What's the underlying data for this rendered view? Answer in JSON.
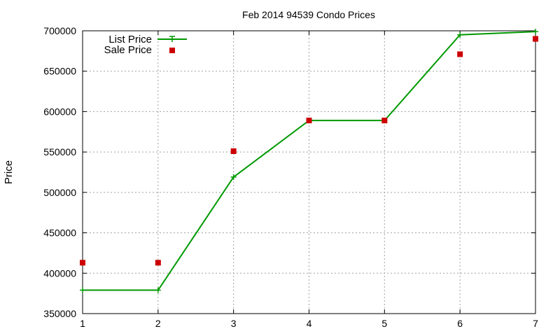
{
  "chart_data": {
    "type": "line",
    "title": "Feb 2014 94539 Condo Prices",
    "xlabel": "",
    "ylabel": "Price",
    "xlim": [
      1,
      7
    ],
    "ylim": [
      350000,
      700000
    ],
    "xticks": [
      "1",
      "2",
      "3",
      "4",
      "5",
      "6",
      "7"
    ],
    "yticks": [
      "350000",
      "400000",
      "450000",
      "500000",
      "550000",
      "600000",
      "650000",
      "700000"
    ],
    "grid": true,
    "legend_position": "top-left",
    "series": [
      {
        "name": "List Price",
        "style": "line+cross",
        "color": "#009900",
        "x": [
          1,
          2,
          3,
          4,
          5,
          6,
          7
        ],
        "y": [
          379000,
          379000,
          519000,
          589000,
          589000,
          695000,
          699000
        ]
      },
      {
        "name": "Sale Price",
        "style": "square-points",
        "color": "#cc0000",
        "x": [
          1,
          2,
          3,
          4,
          5,
          6,
          7
        ],
        "y": [
          413000,
          413000,
          551000,
          589000,
          589000,
          671000,
          690000
        ]
      }
    ]
  }
}
